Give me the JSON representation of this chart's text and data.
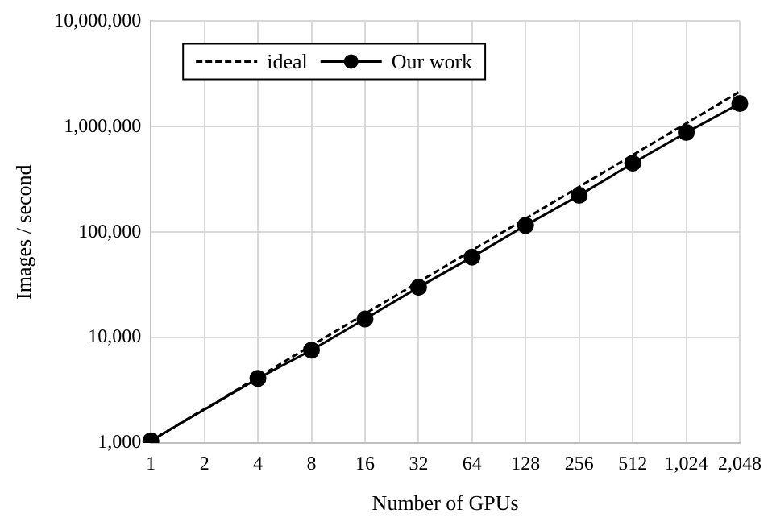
{
  "chart_data": {
    "type": "line",
    "xlabel": "Number of GPUs",
    "ylabel": "Images / second",
    "categories": [
      "1",
      "2",
      "4",
      "8",
      "16",
      "32",
      "64",
      "128",
      "256",
      "512",
      "1,024",
      "2,048"
    ],
    "series": [
      {
        "name": "ideal",
        "color": "#000000",
        "line_style": "dashed",
        "marker": "none",
        "values": [
          1050,
          2100,
          4200,
          8400,
          16800,
          33600,
          67200,
          134400,
          268800,
          537600,
          1075200,
          2150400
        ]
      },
      {
        "name": "Our work",
        "color": "#000000",
        "line_style": "solid",
        "marker": "circle",
        "values": [
          1050,
          null,
          4100,
          7600,
          15000,
          30000,
          58000,
          116000,
          223000,
          450000,
          880000,
          1660000
        ]
      }
    ],
    "log": "y",
    "ylim": [
      1000,
      10000000
    ],
    "yticks": [
      {
        "value": 1000,
        "label": "1,000"
      },
      {
        "value": 10000,
        "label": "10,000"
      },
      {
        "value": 100000,
        "label": "100,000"
      },
      {
        "value": 1000000,
        "label": "1,000,000"
      },
      {
        "value": 10000000,
        "label": "10,000,000"
      }
    ],
    "grid": true,
    "legend": "top left"
  }
}
